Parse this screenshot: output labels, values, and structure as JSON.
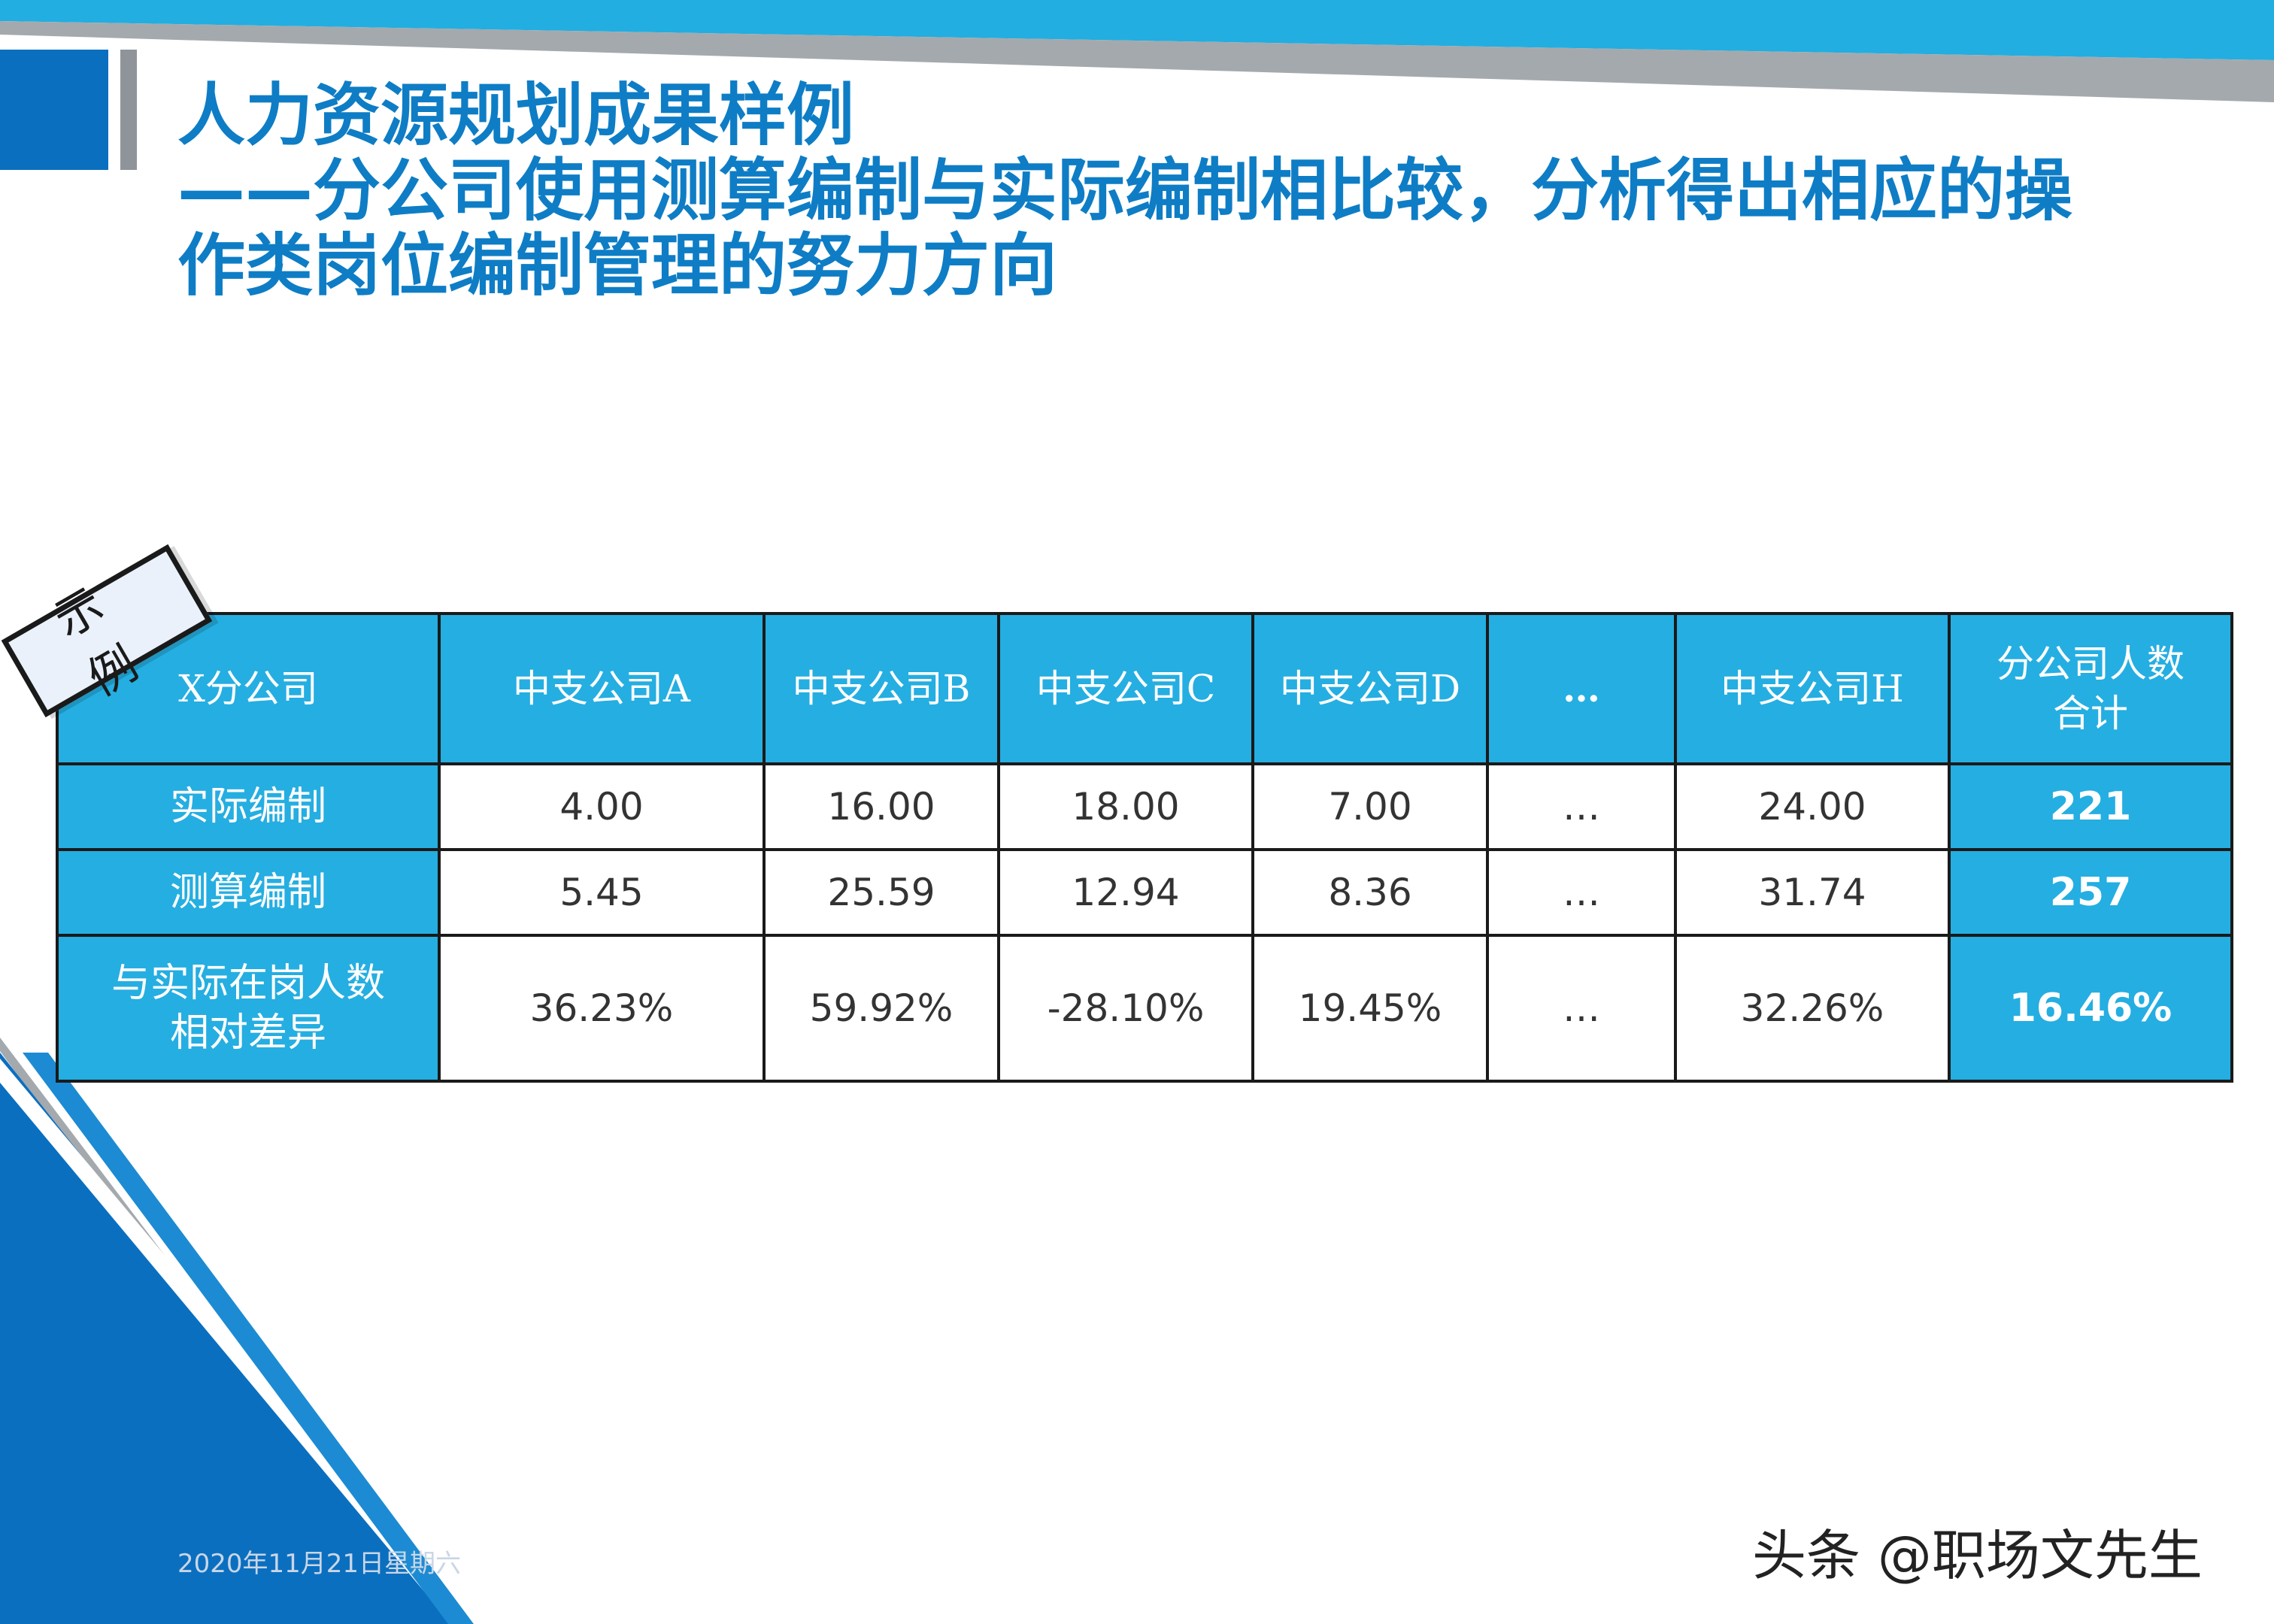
{
  "title": {
    "line1": "人力资源规划成果样例",
    "line2": "——分公司使用测算编制与实际编制相比较，分析得出相应的操",
    "line3": "作类岗位编制管理的努力方向"
  },
  "stamp": "示例",
  "table": {
    "headers": [
      "X分公司",
      "中支公司A",
      "中支公司B",
      "中支公司C",
      "中支公司D",
      "…",
      "中支公司H",
      "分公司人数合计"
    ],
    "header_last_lines": [
      "分公司人数",
      "合计"
    ],
    "rows": [
      {
        "label": [
          "实际编制"
        ],
        "values": [
          "4.00",
          "16.00",
          "18.00",
          "7.00",
          "…",
          "24.00"
        ],
        "total": "221"
      },
      {
        "label": [
          "测算编制"
        ],
        "values": [
          "5.45",
          "25.59",
          "12.94",
          "8.36",
          "…",
          "31.74"
        ],
        "total": "257"
      },
      {
        "label": [
          "与实际在岗人数",
          "相对差异"
        ],
        "values": [
          "36.23%",
          "59.92%",
          "-28.10%",
          "19.45%",
          "…",
          "32.26%"
        ],
        "total": "16.46%"
      }
    ]
  },
  "footer_date": "2020年11月21日星期六",
  "watermark": "头条 @职场文先生",
  "colors": {
    "title_blue": "#0E7DC5",
    "header_cyan": "#25AEE1",
    "top_bar_cyan": "#22AEE0",
    "dark_blue": "#0B6FC0",
    "gray": "#9AA0A6"
  }
}
